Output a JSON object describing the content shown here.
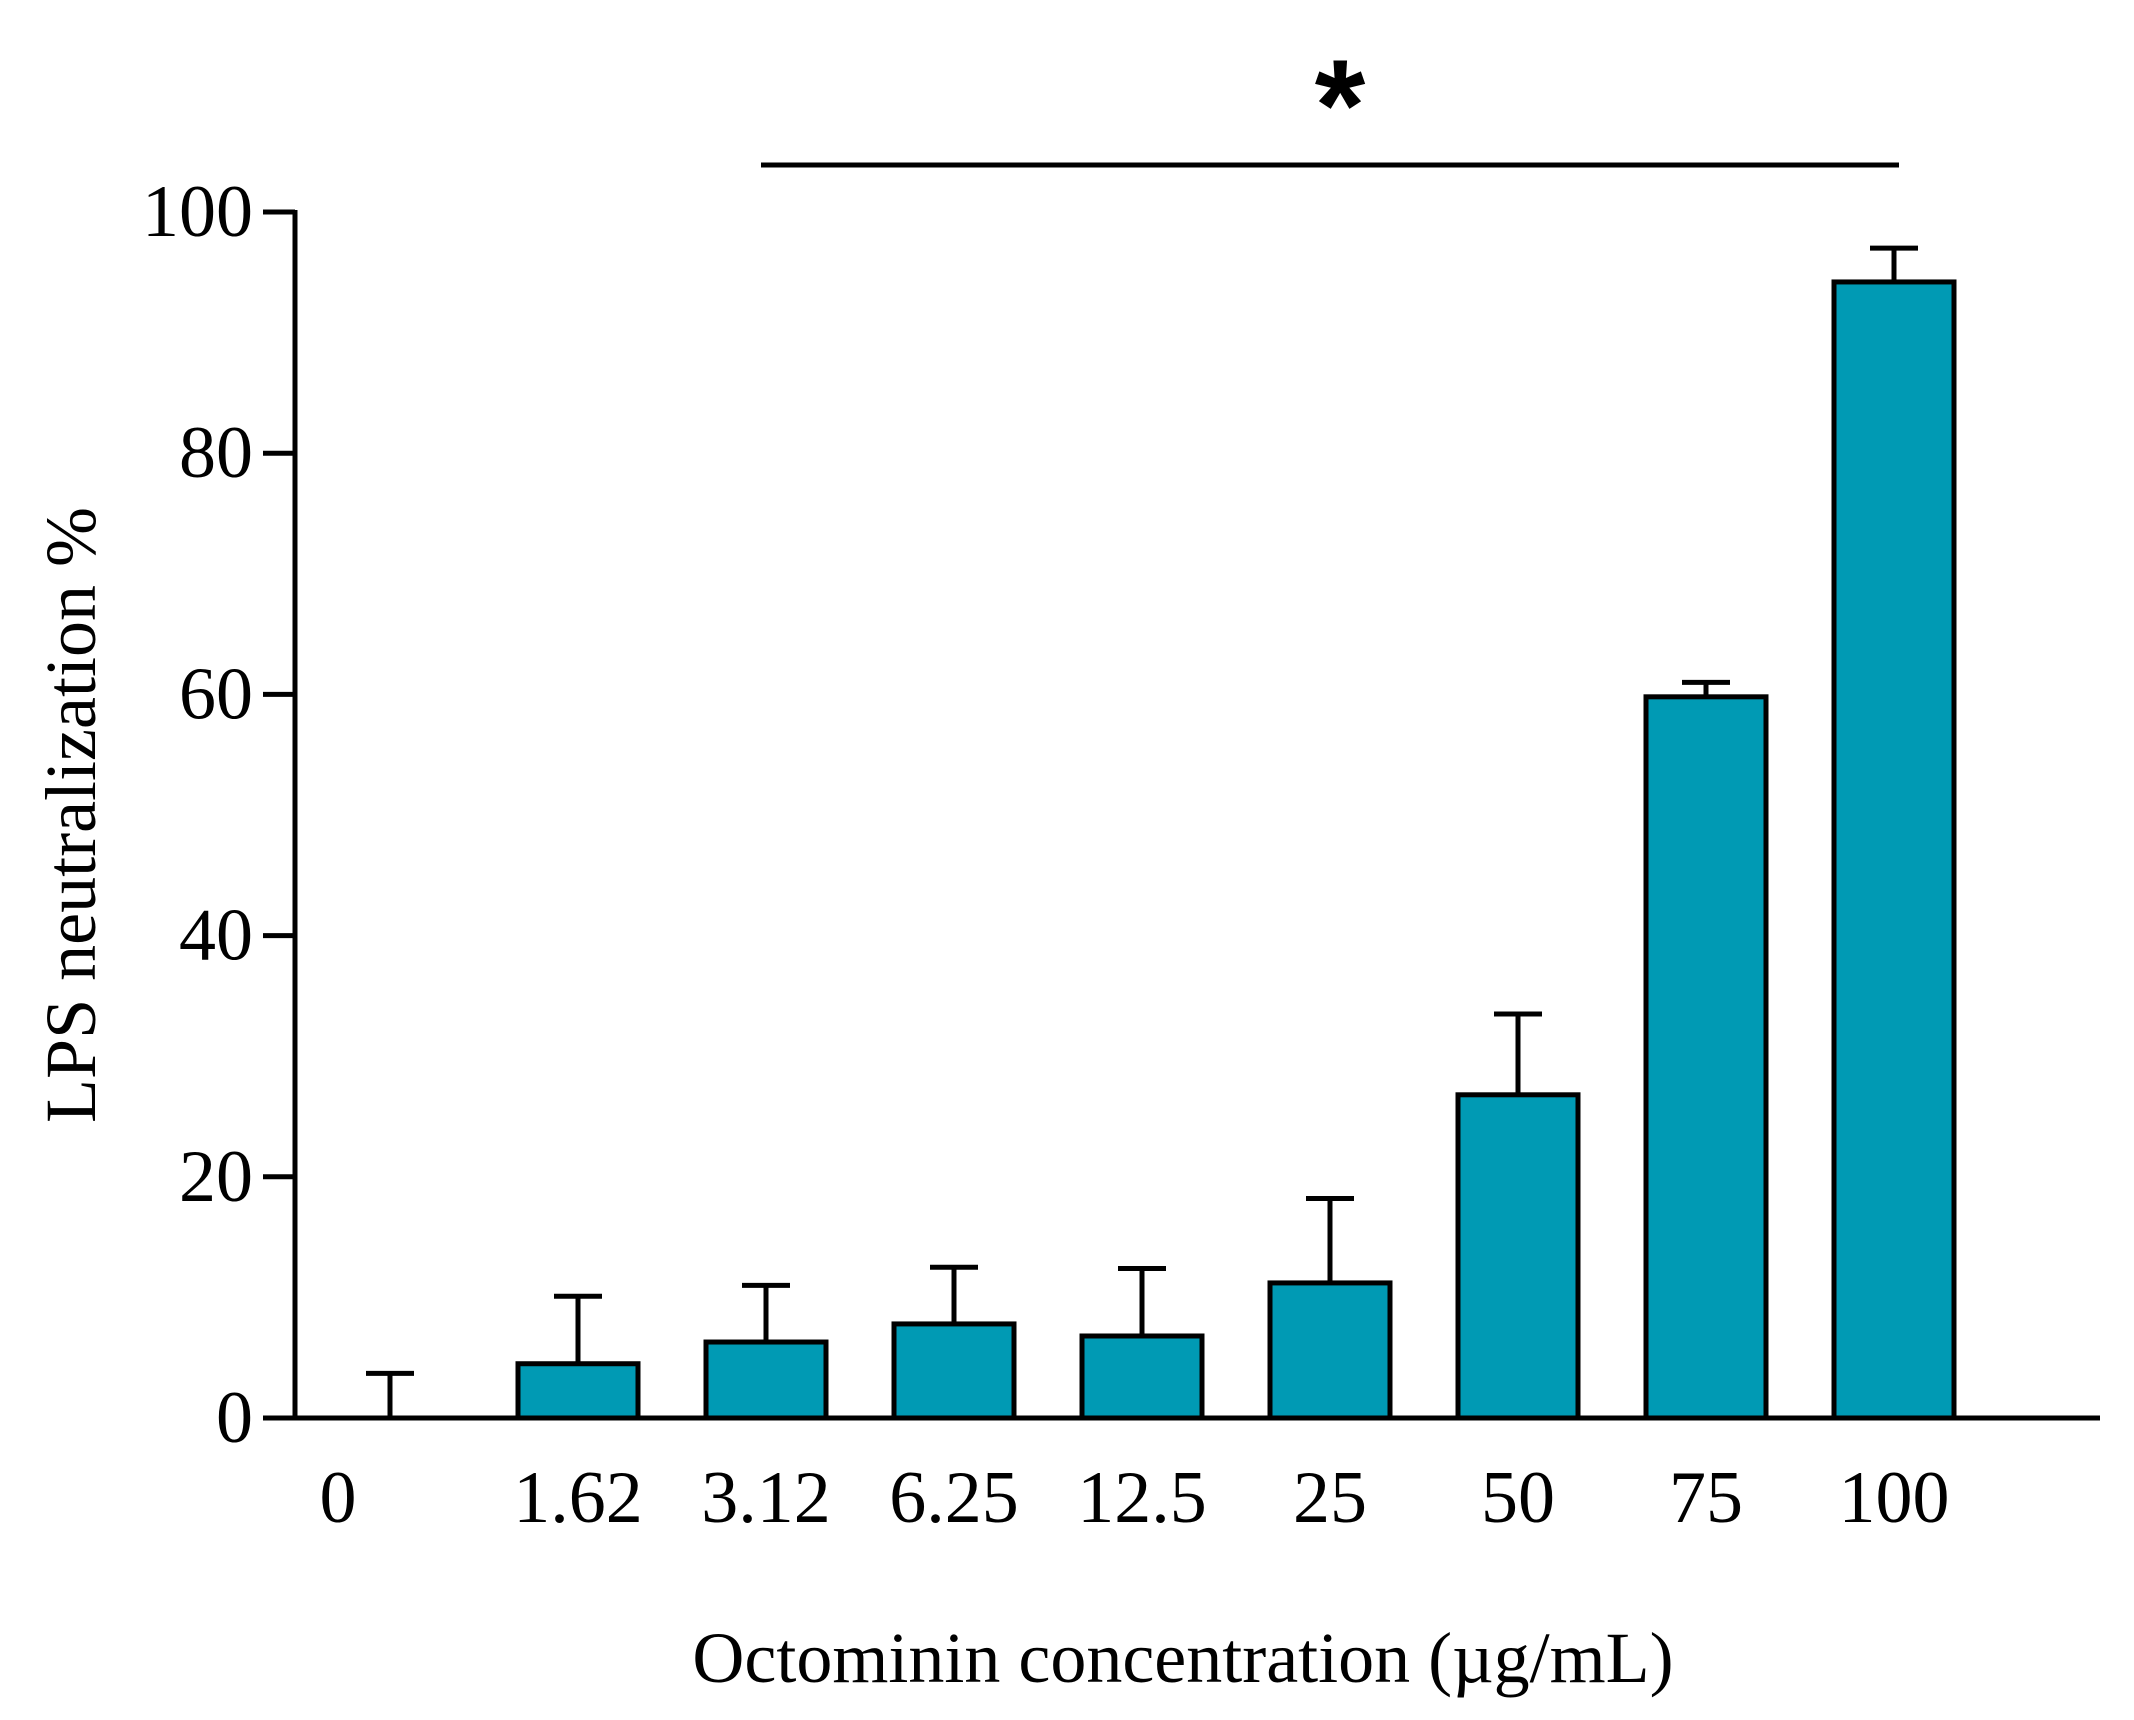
{
  "chart_data": {
    "type": "bar",
    "categories": [
      "0",
      "1.62",
      "3.12",
      "6.25",
      "12.5",
      "25",
      "50",
      "75",
      "100"
    ],
    "values": [
      0,
      4.5,
      6.3,
      7.8,
      6.8,
      11.2,
      26.8,
      59.8,
      94.2
    ],
    "error_upper": [
      3.7,
      10.1,
      11.0,
      12.5,
      12.4,
      18.2,
      33.5,
      61.0,
      97.0
    ],
    "xlabel": "Octominin concentration (µg/mL)",
    "ylabel": "LPS neutralization %",
    "ylim": [
      0,
      100
    ],
    "yticks": [
      "0",
      "20",
      "40",
      "60",
      "80",
      "100"
    ],
    "bar_color": "#009AB4",
    "significance": {
      "marker": "*",
      "from_category": "3.12",
      "to_category": "100"
    }
  }
}
